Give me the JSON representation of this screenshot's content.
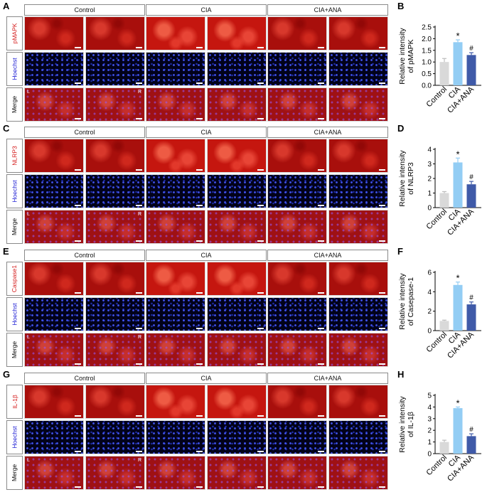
{
  "panels": [
    {
      "id": "A",
      "letter": "A",
      "chart_letter": "B",
      "groups": [
        "Control",
        "CIA",
        "CIA+ANA"
      ],
      "rows": [
        {
          "label": "pMAPK",
          "color": "#d41818"
        },
        {
          "label": "Hoechst",
          "color": "#1a1ad4"
        },
        {
          "label": "Merge",
          "color": "#000000"
        }
      ],
      "lr": [
        "L",
        "R"
      ]
    },
    {
      "id": "C",
      "letter": "C",
      "chart_letter": "D",
      "groups": [
        "Control",
        "CIA",
        "CIA+ANA"
      ],
      "rows": [
        {
          "label": "NLRP3",
          "color": "#d41818"
        },
        {
          "label": "Hoechst",
          "color": "#1a1ad4"
        },
        {
          "label": "Merge",
          "color": "#000000"
        }
      ],
      "lr": [
        "L",
        "R"
      ]
    },
    {
      "id": "E",
      "letter": "E",
      "chart_letter": "F",
      "groups": [
        "Control",
        "CIA",
        "CIA+ANA"
      ],
      "rows": [
        {
          "label": "Caspase1",
          "color": "#d41818"
        },
        {
          "label": "Hoechst",
          "color": "#1a1ad4"
        },
        {
          "label": "Merge",
          "color": "#000000"
        }
      ],
      "lr": [
        "L",
        "R"
      ]
    },
    {
      "id": "G",
      "letter": "G",
      "chart_letter": "H",
      "groups": [
        "Control",
        "CIA",
        "CIA+ANA"
      ],
      "rows": [
        {
          "label": "IL-1β",
          "color": "#d41818"
        },
        {
          "label": "Hoechst",
          "color": "#1a1ad4"
        },
        {
          "label": "Merge",
          "color": "#000000"
        }
      ],
      "lr": [
        "L",
        "R"
      ]
    }
  ],
  "chart_data": [
    {
      "type": "bar",
      "ylabel": [
        "Relative intensity",
        "of pMAPK"
      ],
      "categories": [
        "Control",
        "CIA",
        "CIA+ANA"
      ],
      "values": [
        1.0,
        1.85,
        1.3
      ],
      "errors": [
        0.15,
        0.1,
        0.1
      ],
      "ylim": [
        0,
        2.5
      ],
      "yticks": [
        "0.0",
        "0.5",
        "1.0",
        "1.5",
        "2.0",
        "2.5"
      ],
      "significance": [
        "",
        "*",
        "#"
      ],
      "colors": [
        "#d9d9d9",
        "#93cdf4",
        "#3f5aa8"
      ]
    },
    {
      "type": "bar",
      "ylabel": [
        "Relative intensity",
        "of NLRP3"
      ],
      "categories": [
        "Control",
        "CIA",
        "CIA+ANA"
      ],
      "values": [
        1.0,
        3.1,
        1.6
      ],
      "errors": [
        0.1,
        0.3,
        0.2
      ],
      "ylim": [
        0,
        4
      ],
      "yticks": [
        "0",
        "1",
        "2",
        "3",
        "4"
      ],
      "significance": [
        "",
        "*",
        "#"
      ],
      "colors": [
        "#d9d9d9",
        "#93cdf4",
        "#3f5aa8"
      ]
    },
    {
      "type": "bar",
      "ylabel": [
        "Relative intensity",
        "of Casepase-1"
      ],
      "categories": [
        "Control",
        "CIA",
        "CIA+ANA"
      ],
      "values": [
        1.0,
        4.7,
        2.7
      ],
      "errors": [
        0.08,
        0.3,
        0.25
      ],
      "ylim": [
        0,
        6
      ],
      "yticks": [
        "0",
        "2",
        "4",
        "6"
      ],
      "significance": [
        "",
        "*",
        "#"
      ],
      "colors": [
        "#d9d9d9",
        "#93cdf4",
        "#3f5aa8"
      ]
    },
    {
      "type": "bar",
      "ylabel": [
        "Relative intensity",
        "of IL-1β"
      ],
      "categories": [
        "Control",
        "CIA",
        "CIA+ANA"
      ],
      "values": [
        1.0,
        3.9,
        1.5
      ],
      "errors": [
        0.15,
        0.1,
        0.2
      ],
      "ylim": [
        0,
        5
      ],
      "yticks": [
        "0",
        "1",
        "2",
        "3",
        "4",
        "5"
      ],
      "significance": [
        "",
        "*",
        "#"
      ],
      "colors": [
        "#d9d9d9",
        "#93cdf4",
        "#3f5aa8"
      ]
    }
  ]
}
